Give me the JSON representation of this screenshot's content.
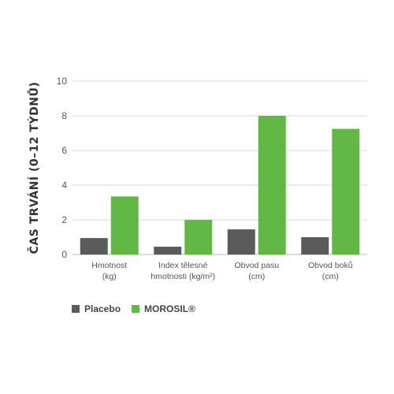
{
  "chart_data": {
    "type": "bar",
    "ylabel": "ČAS TRVÁNÍ (0–12 TÝDNŮ)",
    "ylim": [
      0,
      10
    ],
    "yticks": [
      0,
      2,
      4,
      6,
      8,
      10
    ],
    "grid": true,
    "legend_position": "bottom-left",
    "categories": [
      [
        "Hmotnost",
        "(kg)"
      ],
      [
        "Index tělesné",
        "hmotnosti (kg/m²)"
      ],
      [
        "Obvod pasu",
        "(cm)"
      ],
      [
        "Obvod boků",
        "(cm)"
      ]
    ],
    "series": [
      {
        "name": "Placebo",
        "color": "#5b5b5b",
        "values": [
          0.95,
          0.45,
          1.45,
          1.0
        ]
      },
      {
        "name": "MOROSIL®",
        "color": "#62b845",
        "values": [
          3.35,
          2.0,
          8.0,
          7.25
        ]
      }
    ]
  }
}
